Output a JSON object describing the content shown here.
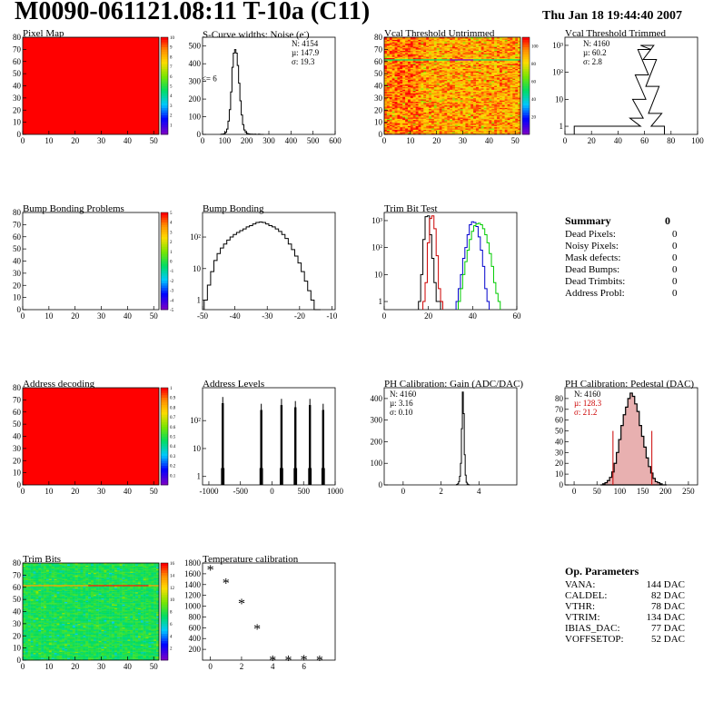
{
  "header": {
    "title": "M0090-061121.08:11 T-10a (C11)",
    "date": "Thu Jan 18 19:44:40 2007"
  },
  "colors": {
    "dead_map": "#ff0000",
    "histogram_line": "#000000",
    "trim_red": "#cc0000",
    "trim_blue": "#0000cc",
    "trim_green": "#00cc00",
    "pedestal_fill": "#e8b0b0",
    "stats_red": "#cc0000"
  },
  "summary": {
    "title": "Summary",
    "total": "0",
    "items": [
      {
        "label": "Dead Pixels:",
        "value": "0"
      },
      {
        "label": "Noisy Pixels:",
        "value": "0"
      },
      {
        "label": "Mask defects:",
        "value": "0"
      },
      {
        "label": "Dead Bumps:",
        "value": "0"
      },
      {
        "label": "Dead Trimbits:",
        "value": "0"
      },
      {
        "label": "Address Probl:",
        "value": "0"
      }
    ]
  },
  "op_params": {
    "title": "Op. Parameters",
    "items": [
      {
        "label": "VANA:",
        "value": "144 DAC"
      },
      {
        "label": "CALDEL:",
        "value": "82 DAC"
      },
      {
        "label": "VTHR:",
        "value": "78 DAC"
      },
      {
        "label": "VTRIM:",
        "value": "134 DAC"
      },
      {
        "label": "IBIAS_DAC:",
        "value": "77 DAC"
      },
      {
        "label": "VOFFSETOP:",
        "value": "52 DAC"
      }
    ]
  },
  "chart_data": [
    {
      "id": "pixel_map",
      "type": "heatmap",
      "title": "Pixel Map",
      "xlim": [
        0,
        52
      ],
      "ylim": [
        0,
        80
      ],
      "xticks": [
        0,
        10,
        20,
        30,
        40,
        50
      ],
      "yticks": [
        0,
        10,
        20,
        30,
        40,
        50,
        60,
        70,
        80
      ],
      "fill": "uniform_max",
      "zticks": [
        1,
        2,
        3,
        4,
        5,
        6,
        7,
        8,
        9,
        10
      ],
      "zlim": [
        0,
        10
      ]
    },
    {
      "id": "noise",
      "type": "line",
      "title": "S-Curve widths: Noise (e",
      "xlim": [
        0,
        600
      ],
      "ylim": [
        0,
        550
      ],
      "xticks": [
        0,
        100,
        200,
        300,
        400,
        500,
        600
      ],
      "yticks": [
        0,
        100,
        200,
        300,
        400,
        500
      ],
      "stats": [
        "N: 4154",
        "µ: 147.9",
        "σ: 19.3"
      ],
      "annotation": "<= 6",
      "x": [
        82,
        88,
        94,
        100,
        106,
        112,
        118,
        124,
        130,
        136,
        142,
        148,
        154,
        160,
        166,
        172,
        178,
        184,
        190,
        196,
        202,
        208,
        214,
        220,
        226,
        232,
        238,
        244,
        250,
        256,
        262,
        268,
        274
      ],
      "y": [
        0,
        1,
        2,
        4,
        12,
        30,
        75,
        140,
        240,
        380,
        460,
        480,
        460,
        390,
        290,
        190,
        110,
        55,
        25,
        12,
        6,
        3,
        2,
        1,
        1,
        0,
        1,
        0,
        0,
        1,
        0,
        0,
        0
      ]
    },
    {
      "id": "vcal_untrimmed",
      "type": "heatmap",
      "title": "Vcal Threshold Untrimmed",
      "xlim": [
        0,
        52
      ],
      "ylim": [
        0,
        80
      ],
      "xticks": [
        0,
        10,
        20,
        30,
        40,
        50
      ],
      "yticks": [
        0,
        10,
        20,
        30,
        40,
        50,
        60,
        70,
        80
      ],
      "zticks": [
        20,
        40,
        60,
        80,
        100
      ],
      "zlim": [
        0,
        110
      ],
      "fill": "noisy_orange",
      "highlight_row": 61
    },
    {
      "id": "vcal_trimmed",
      "type": "line",
      "title": "Vcal Threshold Trimmed",
      "log_y": true,
      "xlim": [
        0,
        100
      ],
      "ylim": [
        0.5,
        2000
      ],
      "xticks": [
        0,
        20,
        40,
        60,
        80,
        100
      ],
      "yticks": [
        1,
        10,
        100,
        1000
      ],
      "stats": [
        "N: 4160",
        "µ: 60.2",
        "σ:  2.8"
      ],
      "x": [
        12,
        22,
        44,
        48,
        52,
        54,
        56,
        58,
        60,
        62,
        64,
        66,
        68,
        70
      ],
      "y": [
        1,
        1,
        1,
        1,
        1,
        2,
        10,
        80,
        700,
        1000,
        300,
        30,
        3,
        1
      ]
    },
    {
      "id": "bump_map",
      "type": "heatmap",
      "title": "Bump Bonding Problems",
      "xlim": [
        0,
        52
      ],
      "ylim": [
        0,
        80
      ],
      "xticks": [
        0,
        10,
        20,
        30,
        40,
        50
      ],
      "yticks": [
        0,
        10,
        20,
        30,
        40,
        50,
        60,
        70,
        80
      ],
      "zticks": [
        -5,
        -4,
        -3,
        -2,
        -1,
        0,
        1,
        2,
        3,
        4,
        5
      ],
      "zlim": [
        -5,
        5
      ],
      "fill": "empty"
    },
    {
      "id": "bump_bonding",
      "type": "line",
      "title": "Bump Bonding",
      "log_y": true,
      "xlim": [
        -50,
        -9
      ],
      "ylim": [
        0.5,
        600
      ],
      "xticks": [
        -50,
        -40,
        -30,
        -20,
        -10
      ],
      "yticks": [
        1,
        10,
        100
      ],
      "x": [
        -49,
        -48,
        -47,
        -46,
        -45,
        -44,
        -43,
        -42,
        -41,
        -40,
        -39,
        -38,
        -37,
        -36,
        -35,
        -34,
        -33,
        -32,
        -31,
        -30,
        -29,
        -28,
        -27,
        -26,
        -25,
        -24,
        -23,
        -22,
        -21,
        -20,
        -19,
        -18,
        -17,
        -16,
        -15,
        -14
      ],
      "y": [
        1,
        3,
        8,
        18,
        30,
        45,
        60,
        80,
        100,
        120,
        140,
        160,
        180,
        210,
        230,
        260,
        290,
        300,
        290,
        260,
        230,
        210,
        180,
        150,
        120,
        90,
        60,
        40,
        25,
        15,
        8,
        4,
        2,
        1,
        0,
        0
      ]
    },
    {
      "id": "trim_bit_test",
      "type": "line",
      "title": "Trim Bit Test",
      "log_y": true,
      "xlim": [
        0,
        60
      ],
      "ylim": [
        0.5,
        2000
      ],
      "xticks": [
        0,
        20,
        40,
        60
      ],
      "yticks": [
        1,
        10,
        100,
        1000
      ],
      "series": [
        {
          "color": "#000000",
          "x": [
            16,
            17,
            18,
            19,
            20,
            21,
            22,
            23,
            24,
            25
          ],
          "y": [
            1,
            10,
            200,
            1400,
            1500,
            300,
            40,
            5,
            1,
            1
          ]
        },
        {
          "color": "#cc0000",
          "x": [
            18,
            19,
            20,
            21,
            22,
            23,
            24,
            25,
            26
          ],
          "y": [
            1,
            5,
            150,
            1200,
            1500,
            500,
            50,
            3,
            1
          ]
        },
        {
          "color": "#0000cc",
          "x": [
            33,
            34,
            35,
            36,
            37,
            38,
            39,
            40,
            41,
            42,
            43,
            44,
            45,
            46,
            47
          ],
          "y": [
            1,
            3,
            10,
            40,
            100,
            300,
            700,
            900,
            850,
            600,
            250,
            80,
            20,
            3,
            1
          ]
        },
        {
          "color": "#00cc00",
          "x": [
            34,
            35,
            36,
            37,
            38,
            39,
            40,
            41,
            42,
            43,
            44,
            45,
            46,
            47,
            48,
            49,
            50,
            51,
            52
          ],
          "y": [
            1,
            3,
            10,
            30,
            80,
            200,
            400,
            650,
            750,
            800,
            700,
            500,
            300,
            150,
            60,
            20,
            5,
            2,
            1
          ]
        }
      ]
    },
    {
      "id": "address_decoding",
      "type": "heatmap",
      "title": "Address decoding",
      "xlim": [
        0,
        52
      ],
      "ylim": [
        0,
        80
      ],
      "xticks": [
        0,
        10,
        20,
        30,
        40,
        50
      ],
      "yticks": [
        0,
        10,
        20,
        30,
        40,
        50,
        60,
        70,
        80
      ],
      "zticks": [
        0.1,
        0.2,
        0.3,
        0.4,
        0.5,
        0.6,
        0.7,
        0.8,
        0.9,
        1
      ],
      "zlim": [
        0,
        1
      ],
      "fill": "uniform_max"
    },
    {
      "id": "address_levels",
      "type": "line",
      "title": "Address Levels",
      "log_y": true,
      "xlim": [
        -1100,
        1000
      ],
      "ylim": [
        0.5,
        1500
      ],
      "xticks": [
        -1000,
        -500,
        0,
        500,
        1000
      ],
      "yticks": [
        1,
        10,
        100
      ],
      "peaks": [
        -780,
        -170,
        150,
        370,
        600,
        810
      ],
      "peak_heights": [
        700,
        400,
        600,
        500,
        600,
        400
      ]
    },
    {
      "id": "ph_gain",
      "type": "line",
      "title": "PH Calibration: Gain (ADC/DAC)",
      "xlim": [
        -1,
        6
      ],
      "ylim": [
        0,
        450
      ],
      "xticks": [
        0,
        2,
        4
      ],
      "yticks": [
        0,
        100,
        200,
        300,
        400
      ],
      "stats": [
        "N: 4160",
        "µ: 3.16",
        "σ: 0.10"
      ],
      "x": [
        2.8,
        2.85,
        2.9,
        2.95,
        3.0,
        3.05,
        3.1,
        3.15,
        3.2,
        3.25,
        3.3,
        3.35,
        3.4,
        3.45,
        3.5
      ],
      "y": [
        0,
        2,
        5,
        15,
        40,
        100,
        260,
        430,
        330,
        140,
        45,
        12,
        4,
        1,
        0
      ]
    },
    {
      "id": "ph_pedestal",
      "type": "area",
      "title": "PH Calibration: Pedestal (DAC)",
      "xlim": [
        -20,
        270
      ],
      "ylim": [
        0,
        90
      ],
      "xticks": [
        0,
        50,
        100,
        150,
        200,
        250
      ],
      "yticks": [
        0,
        10,
        20,
        30,
        40,
        50,
        60,
        70,
        80
      ],
      "stats": [
        "N: 4160",
        "µ: 128.3",
        "σ: 21.2"
      ],
      "fit_lines": [
        85,
        170
      ],
      "x": [
        60,
        65,
        70,
        75,
        80,
        85,
        90,
        95,
        100,
        105,
        110,
        115,
        120,
        125,
        130,
        135,
        140,
        145,
        150,
        155,
        160,
        165,
        170,
        175,
        180,
        185,
        190,
        195,
        200
      ],
      "y": [
        0,
        1,
        2,
        4,
        7,
        12,
        20,
        30,
        42,
        55,
        65,
        72,
        80,
        85,
        82,
        75,
        68,
        55,
        45,
        35,
        25,
        17,
        11,
        6,
        3,
        2,
        1,
        0,
        0
      ]
    },
    {
      "id": "trim_bits",
      "type": "heatmap",
      "title": "Trim Bits",
      "xlim": [
        0,
        52
      ],
      "ylim": [
        0,
        80
      ],
      "xticks": [
        0,
        10,
        20,
        30,
        40,
        50
      ],
      "yticks": [
        0,
        10,
        20,
        30,
        40,
        50,
        60,
        70,
        80
      ],
      "zticks": [
        2,
        4,
        6,
        8,
        10,
        12,
        14,
        16
      ],
      "zlim": [
        0,
        16
      ],
      "fill": "noisy_green",
      "highlight_row": 61
    },
    {
      "id": "temperature",
      "type": "scatter",
      "title": "Temperature calibration",
      "xlim": [
        -0.5,
        8
      ],
      "ylim": [
        0,
        1800
      ],
      "xticks": [
        0,
        2,
        4,
        6
      ],
      "yticks": [
        200,
        400,
        600,
        800,
        1000,
        1200,
        1400,
        1600,
        1800
      ],
      "x": [
        0,
        1,
        2,
        3,
        4,
        5,
        6,
        7
      ],
      "y": [
        1680,
        1440,
        1060,
        590,
        10,
        10,
        20,
        10
      ]
    }
  ]
}
